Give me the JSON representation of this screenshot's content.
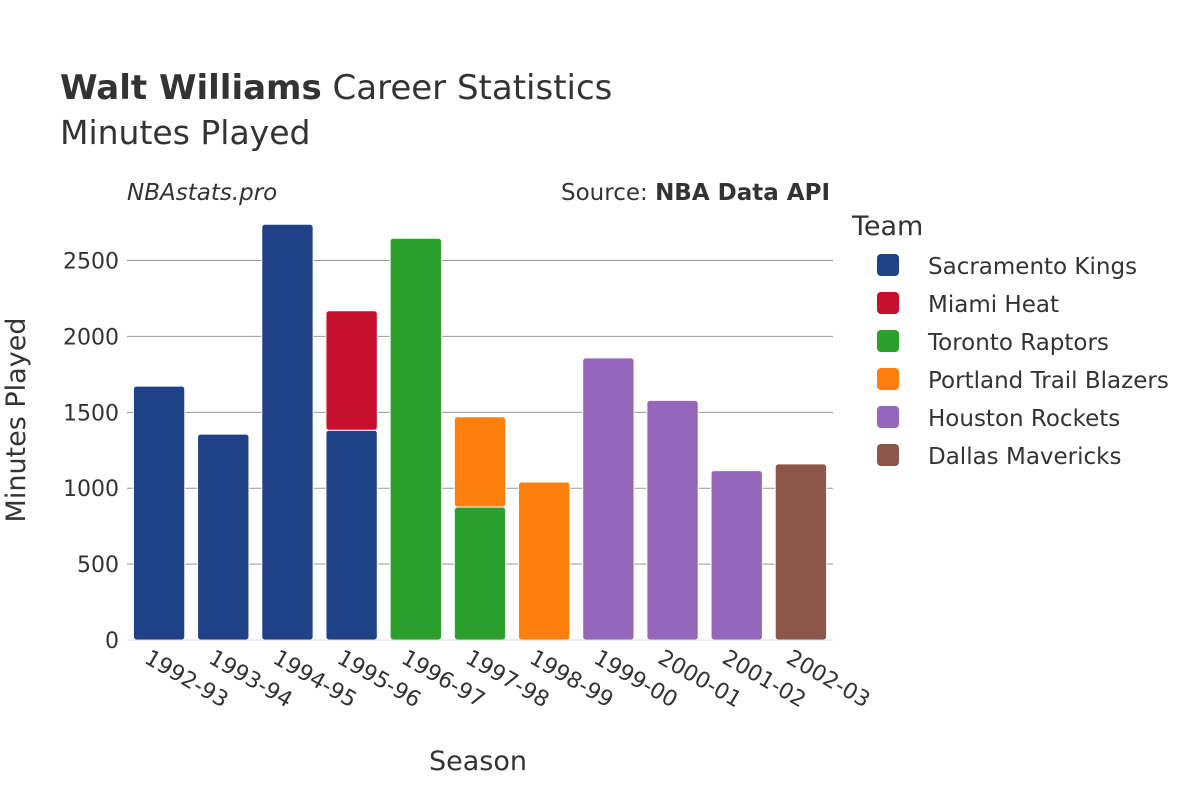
{
  "title": {
    "bold": "Walt Williams",
    "rest": "Career Statistics",
    "subtitle": "Minutes Played"
  },
  "watermark": "NBAstats.pro",
  "source": {
    "prefix": "Source: ",
    "name": "NBA Data API"
  },
  "colors": {
    "Sacramento Kings": "#1f4287",
    "Miami Heat": "#c8102e",
    "Toronto Raptors": "#2ca02c",
    "Portland Trail Blazers": "#ff7f0e",
    "Houston Rockets": "#9467bd",
    "Dallas Mavericks": "#8c564b",
    "grid": "#999999",
    "text": "#333333"
  },
  "chart_data": {
    "type": "bar",
    "stacked": true,
    "xlabel": "Season",
    "ylabel": "Minutes Played",
    "ylim": [
      0,
      2800
    ],
    "yticks": [
      0,
      500,
      1000,
      1500,
      2000,
      2500
    ],
    "grid": true,
    "legend": {
      "title": "Team",
      "placement": "right",
      "entries": [
        "Sacramento Kings",
        "Miami Heat",
        "Toronto Raptors",
        "Portland Trail Blazers",
        "Houston Rockets",
        "Dallas Mavericks"
      ]
    },
    "categories": [
      "1992-93",
      "1993-94",
      "1994-95",
      "1995-96",
      "1996-97",
      "1997-98",
      "1998-99",
      "1999-00",
      "2000-01",
      "2001-02",
      "2002-03"
    ],
    "series": [
      {
        "name": "Sacramento Kings",
        "values": [
          1673,
          1356,
          2739,
          1382,
          0,
          0,
          0,
          0,
          0,
          0,
          0
        ]
      },
      {
        "name": "Miami Heat",
        "values": [
          0,
          0,
          0,
          787,
          0,
          0,
          0,
          0,
          0,
          0,
          0
        ]
      },
      {
        "name": "Toronto Raptors",
        "values": [
          0,
          0,
          0,
          0,
          2647,
          876,
          0,
          0,
          0,
          0,
          0
        ]
      },
      {
        "name": "Portland Trail Blazers",
        "values": [
          0,
          0,
          0,
          0,
          0,
          595,
          1041,
          0,
          0,
          0,
          0
        ]
      },
      {
        "name": "Houston Rockets",
        "values": [
          0,
          0,
          0,
          0,
          0,
          0,
          0,
          1859,
          1579,
          1116,
          0
        ]
      },
      {
        "name": "Dallas Mavericks",
        "values": [
          0,
          0,
          0,
          0,
          0,
          0,
          0,
          0,
          0,
          0,
          1160
        ]
      }
    ]
  }
}
